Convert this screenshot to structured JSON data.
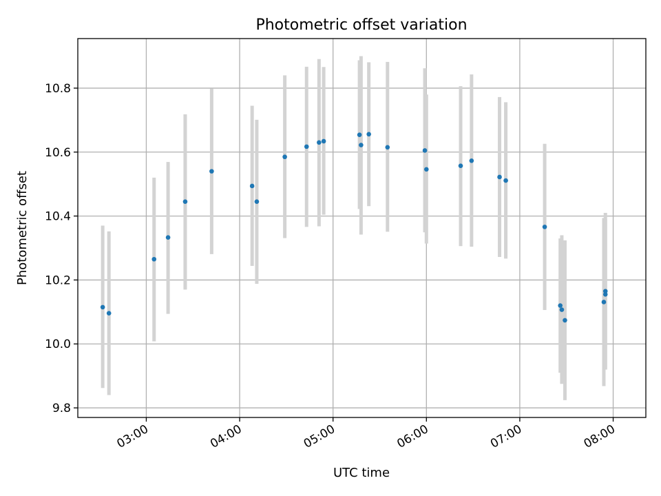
{
  "chart_data": {
    "type": "scatter",
    "title": "Photometric offset variation",
    "xlabel": "UTC time",
    "ylabel": "Photometric offset",
    "xlim": [
      "02:16",
      "08:21"
    ],
    "ylim": [
      9.77,
      10.955
    ],
    "x_ticks": [
      "03:00",
      "04:00",
      "05:00",
      "06:00",
      "07:00",
      "08:00"
    ],
    "y_ticks": [
      9.8,
      10.0,
      10.2,
      10.4,
      10.6,
      10.8
    ],
    "y_tick_labels": [
      "9.8",
      "10.0",
      "10.2",
      "10.4",
      "10.6",
      "10.8"
    ],
    "grid": true,
    "colors": {
      "point": "#1f77b4",
      "errorbar": "#d3d3d3"
    },
    "points": [
      {
        "t": "02:32",
        "y": 10.115,
        "lo": 9.862,
        "hi": 10.37
      },
      {
        "t": "02:36",
        "y": 10.096,
        "lo": 9.84,
        "hi": 10.352
      },
      {
        "t": "03:05",
        "y": 10.265,
        "lo": 10.008,
        "hi": 10.52
      },
      {
        "t": "03:14",
        "y": 10.333,
        "lo": 10.094,
        "hi": 10.569
      },
      {
        "t": "03:25",
        "y": 10.445,
        "lo": 10.17,
        "hi": 10.718
      },
      {
        "t": "03:42",
        "y": 10.54,
        "lo": 10.281,
        "hi": 10.799
      },
      {
        "t": "04:08",
        "y": 10.494,
        "lo": 10.244,
        "hi": 10.745
      },
      {
        "t": "04:11",
        "y": 10.445,
        "lo": 10.188,
        "hi": 10.701
      },
      {
        "t": "04:29",
        "y": 10.585,
        "lo": 10.331,
        "hi": 10.84
      },
      {
        "t": "04:43",
        "y": 10.617,
        "lo": 10.366,
        "hi": 10.867
      },
      {
        "t": "04:51",
        "y": 10.63,
        "lo": 10.368,
        "hi": 10.891
      },
      {
        "t": "04:54",
        "y": 10.634,
        "lo": 10.404,
        "hi": 10.866
      },
      {
        "t": "05:17",
        "y": 10.654,
        "lo": 10.422,
        "hi": 10.887
      },
      {
        "t": "05:18",
        "y": 10.622,
        "lo": 10.342,
        "hi": 10.9
      },
      {
        "t": "05:23",
        "y": 10.656,
        "lo": 10.431,
        "hi": 10.881
      },
      {
        "t": "05:35",
        "y": 10.615,
        "lo": 10.351,
        "hi": 10.882
      },
      {
        "t": "05:59",
        "y": 10.605,
        "lo": 10.349,
        "hi": 10.862
      },
      {
        "t": "06:00",
        "y": 10.546,
        "lo": 10.314,
        "hi": 10.78
      },
      {
        "t": "06:22",
        "y": 10.557,
        "lo": 10.306,
        "hi": 10.806
      },
      {
        "t": "06:29",
        "y": 10.573,
        "lo": 10.304,
        "hi": 10.843
      },
      {
        "t": "06:47",
        "y": 10.522,
        "lo": 10.272,
        "hi": 10.772
      },
      {
        "t": "06:51",
        "y": 10.511,
        "lo": 10.267,
        "hi": 10.756
      },
      {
        "t": "07:16",
        "y": 10.366,
        "lo": 10.106,
        "hi": 10.626
      },
      {
        "t": "07:26",
        "y": 10.12,
        "lo": 9.91,
        "hi": 10.33
      },
      {
        "t": "07:27",
        "y": 10.107,
        "lo": 9.875,
        "hi": 10.34
      },
      {
        "t": "07:29",
        "y": 10.074,
        "lo": 9.824,
        "hi": 10.324
      },
      {
        "t": "07:54",
        "y": 10.131,
        "lo": 9.868,
        "hi": 10.394
      },
      {
        "t": "07:55",
        "y": 10.165,
        "lo": 9.92,
        "hi": 10.41
      },
      {
        "t": "07:55",
        "y": 10.155,
        "lo": 9.92,
        "hi": 10.39
      }
    ]
  }
}
